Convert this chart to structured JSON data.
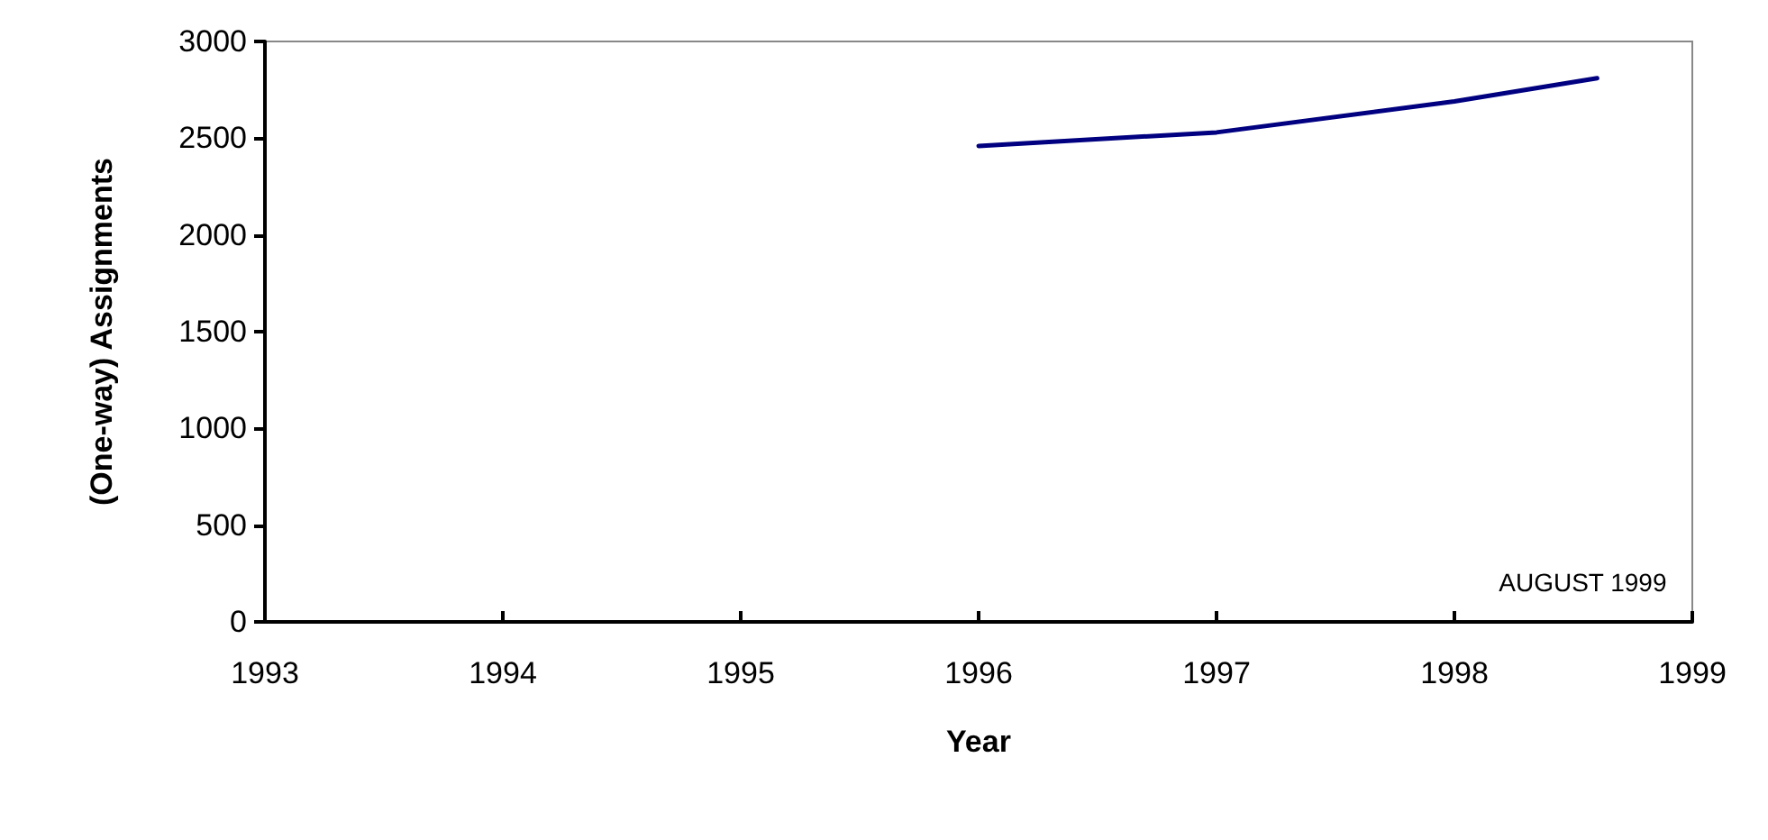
{
  "chart_data": {
    "type": "line",
    "xlabel": "Year",
    "ylabel": "(One-way) Assignments",
    "series": [
      {
        "color": "#000080",
        "x": [
          1996,
          1997,
          1998,
          1998.6
        ],
        "values": [
          2460,
          2530,
          2690,
          2810
        ]
      }
    ],
    "xlim": [
      1993,
      1999
    ],
    "xticks": [
      1993,
      1994,
      1995,
      1996,
      1997,
      1998,
      1999
    ],
    "ylim": [
      0,
      3000
    ],
    "yticks": [
      0,
      500,
      1000,
      1500,
      2000,
      2500,
      3000
    ],
    "grid": false,
    "marker": "none",
    "line_style": "solid",
    "annotations": [
      "AUGUST 1999"
    ]
  }
}
